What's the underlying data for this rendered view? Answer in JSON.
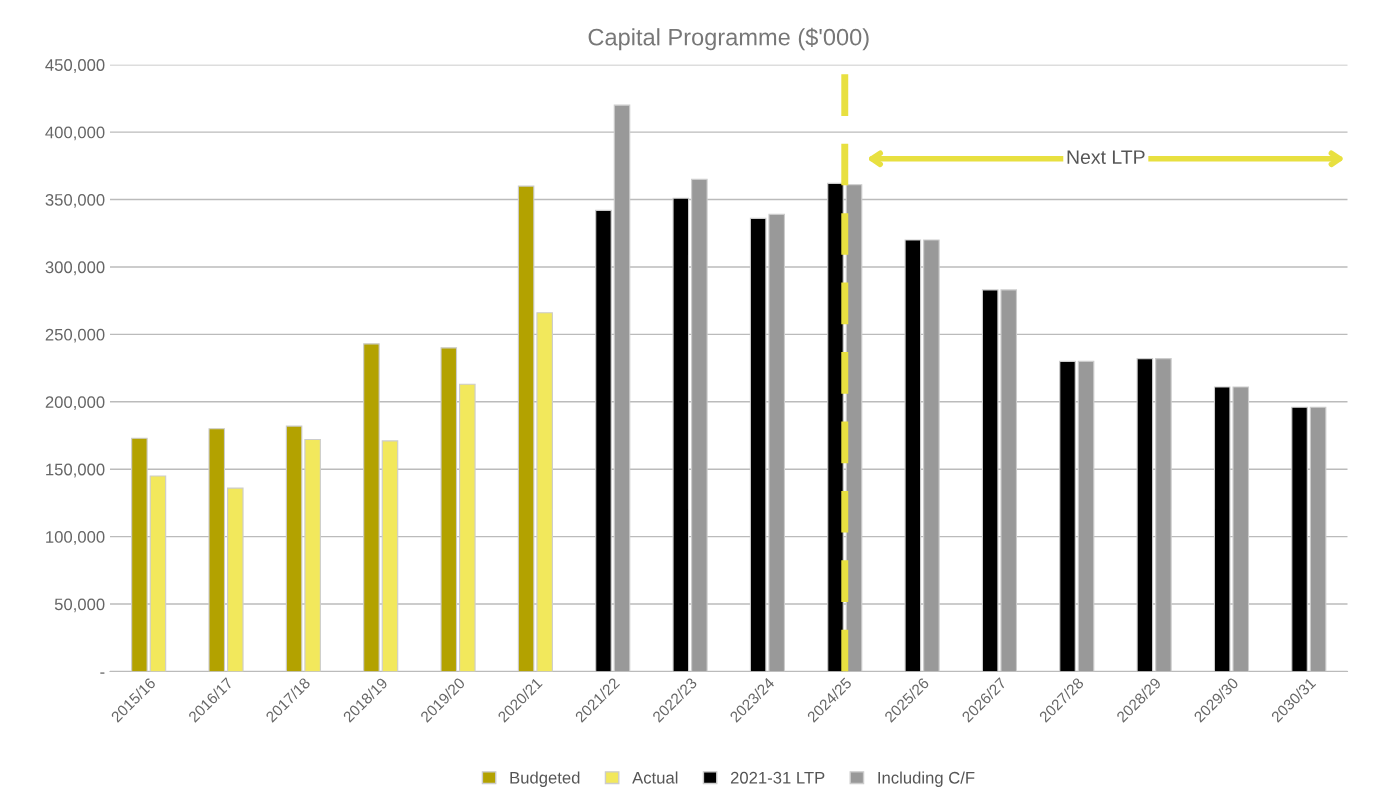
{
  "chart_data": {
    "type": "bar",
    "title": "Capital Programme ($'000)",
    "categories": [
      "2015/16",
      "2016/17",
      "2017/18",
      "2018/19",
      "2019/20",
      "2020/21",
      "2021/22",
      "2022/23",
      "2023/24",
      "2024/25",
      "2025/26",
      "2026/27",
      "2027/28",
      "2028/29",
      "2029/30",
      "2030/31"
    ],
    "series": [
      {
        "name": "Budgeted",
        "color": "#b3a200",
        "values": [
          173000,
          180000,
          182000,
          243000,
          240000,
          360000,
          null,
          null,
          null,
          null,
          null,
          null,
          null,
          null,
          null,
          null
        ]
      },
      {
        "name": "Actual",
        "color": "#f2e85c",
        "values": [
          145000,
          136000,
          172000,
          171000,
          213000,
          266000,
          null,
          null,
          null,
          null,
          null,
          null,
          null,
          null,
          null,
          null
        ]
      },
      {
        "name": "2021-31 LTP",
        "color": "#000000",
        "values": [
          null,
          null,
          null,
          null,
          null,
          null,
          342000,
          351000,
          336000,
          362000,
          320000,
          283000,
          230000,
          232000,
          211000,
          196000
        ]
      },
      {
        "name": "Including C/F",
        "color": "#999999",
        "values": [
          null,
          null,
          null,
          null,
          null,
          null,
          420000,
          365000,
          339000,
          361000,
          320000,
          283000,
          230000,
          232000,
          211000,
          196000
        ]
      }
    ],
    "ylim": [
      0,
      450000
    ],
    "yticks": [
      {
        "value": 0,
        "label": "-"
      },
      {
        "value": 50000,
        "label": "50,000"
      },
      {
        "value": 100000,
        "label": "100,000"
      },
      {
        "value": 150000,
        "label": "150,000"
      },
      {
        "value": 200000,
        "label": "200,000"
      },
      {
        "value": 250000,
        "label": "250,000"
      },
      {
        "value": 300000,
        "label": "300,000"
      },
      {
        "value": 350000,
        "label": "350,000"
      },
      {
        "value": 400000,
        "label": "400,000"
      },
      {
        "value": 450000,
        "label": "450,000"
      }
    ],
    "ref_lines": [
      {
        "axis": "x",
        "value": "2024/25",
        "color": "#e8e040",
        "line_style": "dashed"
      }
    ],
    "annotations": [
      "Next LTP"
    ],
    "grid": "y",
    "legend": "bottom"
  }
}
